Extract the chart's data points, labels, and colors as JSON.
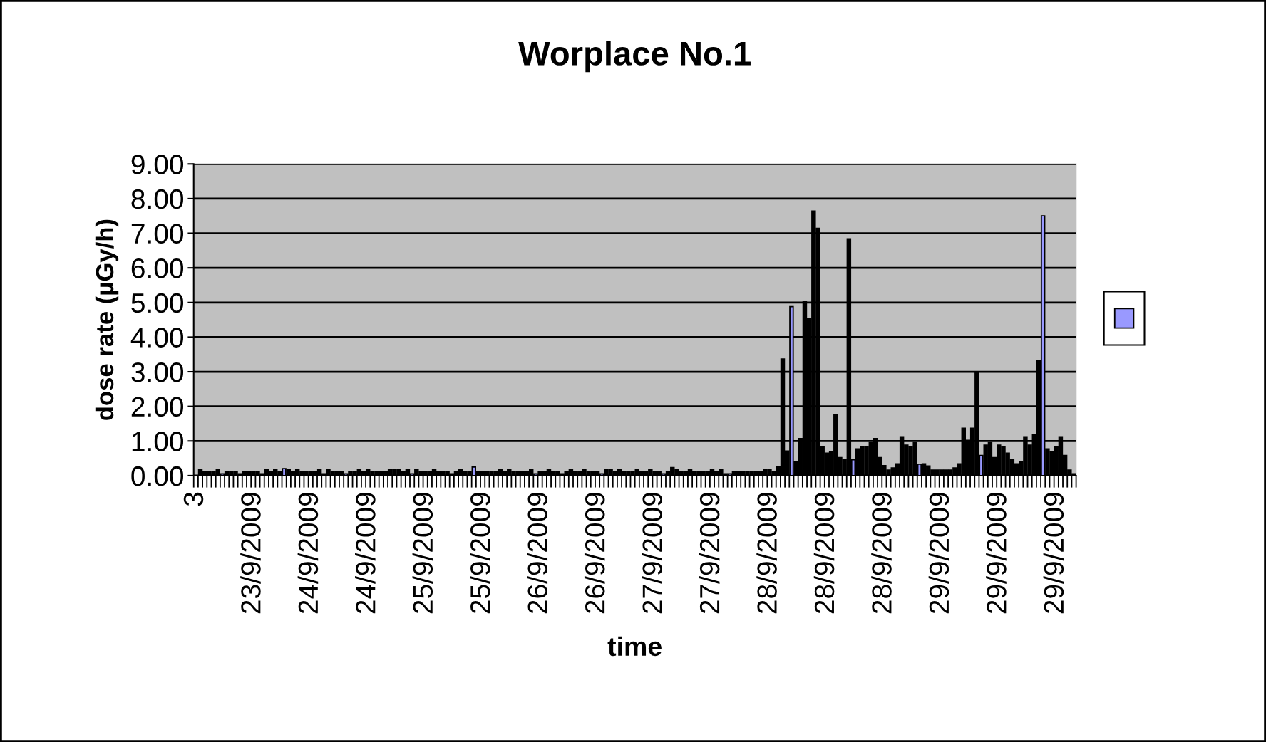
{
  "chart_data": {
    "type": "bar",
    "title": "Worplace No.1",
    "xlabel": "time",
    "ylabel": "dose rate (µGy/h)",
    "categories": [
      "3",
      null,
      null,
      null,
      null,
      null,
      null,
      null,
      null,
      null,
      null,
      null,
      null,
      "23/9/2009",
      null,
      null,
      null,
      null,
      null,
      null,
      null,
      null,
      null,
      null,
      null,
      null,
      "24/9/2009",
      null,
      null,
      null,
      null,
      null,
      null,
      null,
      null,
      null,
      null,
      null,
      null,
      "24/9/2009",
      null,
      null,
      null,
      null,
      null,
      null,
      null,
      null,
      null,
      null,
      null,
      null,
      "25/9/2009",
      null,
      null,
      null,
      null,
      null,
      null,
      null,
      null,
      null,
      null,
      null,
      null,
      "25/9/2009",
      null,
      null,
      null,
      null,
      null,
      null,
      null,
      null,
      null,
      null,
      null,
      null,
      "26/9/2009",
      null,
      null,
      null,
      null,
      null,
      null,
      null,
      null,
      null,
      null,
      null,
      null,
      "26/9/2009",
      null,
      null,
      null,
      null,
      null,
      null,
      null,
      null,
      null,
      null,
      null,
      null,
      "27/9/2009",
      null,
      null,
      null,
      null,
      null,
      null,
      null,
      null,
      null,
      null,
      null,
      null,
      "27/9/2009",
      null,
      null,
      null,
      null,
      null,
      null,
      null,
      null,
      null,
      null,
      null,
      null,
      "28/9/2009",
      null,
      null,
      null,
      null,
      null,
      null,
      null,
      null,
      null,
      null,
      null,
      null,
      "28/9/2009",
      null,
      null,
      null,
      null,
      null,
      null,
      null,
      null,
      null,
      null,
      null,
      null,
      "28/9/2009",
      null,
      null,
      null,
      null,
      null,
      null,
      null,
      null,
      null,
      null,
      null,
      null,
      "29/9/2009",
      null,
      null,
      null,
      null,
      null,
      null,
      null,
      null,
      null,
      null,
      null,
      null,
      "29/9/2009",
      null,
      null,
      null,
      null,
      null,
      null,
      null,
      null,
      null,
      null,
      null,
      null,
      "29/9/2009",
      null,
      null,
      null,
      null
    ],
    "series": [
      {
        "color": "#9999ff",
        "values": [
          0,
          0.18,
          0.12,
          0.12,
          0.12,
          0.18,
          0.05,
          0.12,
          0.12,
          0.12,
          0.05,
          0.12,
          0.12,
          0.12,
          0.12,
          0.05,
          0.18,
          0.12,
          0.18,
          0.12,
          0.2,
          0.18,
          0.12,
          0.18,
          0.12,
          0.12,
          0.12,
          0.12,
          0.18,
          0.05,
          0.18,
          0.12,
          0.12,
          0.12,
          0.05,
          0.12,
          0.12,
          0.18,
          0.12,
          0.18,
          0.12,
          0.12,
          0.12,
          0.12,
          0.18,
          0.18,
          0.18,
          0.12,
          0.18,
          0.05,
          0.18,
          0.12,
          0.12,
          0.12,
          0.18,
          0.12,
          0.12,
          0.12,
          0.05,
          0.12,
          0.18,
          0.12,
          0.12,
          0.25,
          0.12,
          0.12,
          0.12,
          0.12,
          0.12,
          0.18,
          0.12,
          0.18,
          0.12,
          0.12,
          0.12,
          0.12,
          0.18,
          0.05,
          0.12,
          0.12,
          0.18,
          0.12,
          0.12,
          0.05,
          0.12,
          0.18,
          0.12,
          0.12,
          0.18,
          0.12,
          0.12,
          0.12,
          0.05,
          0.18,
          0.18,
          0.12,
          0.18,
          0.12,
          0.12,
          0.12,
          0.18,
          0.12,
          0.12,
          0.18,
          0.12,
          0.12,
          0.05,
          0.12,
          0.23,
          0.18,
          0.12,
          0.12,
          0.18,
          0.12,
          0.12,
          0.12,
          0.12,
          0.18,
          0.12,
          0.18,
          0.05,
          0.05,
          0.12,
          0.12,
          0.12,
          0.12,
          0.12,
          0.12,
          0.12,
          0.18,
          0.18,
          0.12,
          0.25,
          3.37,
          0.71,
          4.88,
          0.41,
          1.07,
          5.02,
          4.54,
          7.64,
          7.14,
          0.83,
          0.65,
          0.7,
          1.75,
          0.52,
          0.46,
          6.84,
          0.46,
          0.77,
          0.83,
          0.83,
          0.95,
          1.07,
          0.52,
          0.29,
          0.16,
          0.22,
          0.34,
          1.12,
          0.88,
          0.83,
          0.95,
          0.33,
          0.34,
          0.28,
          0.16,
          0.16,
          0.16,
          0.16,
          0.16,
          0.22,
          0.34,
          1.37,
          1.02,
          1.37,
          3.0,
          0.58,
          0.88,
          0.95,
          0.52,
          0.88,
          0.83,
          0.65,
          0.46,
          0.34,
          0.41,
          1.12,
          0.88,
          1.19,
          3.31,
          7.5,
          0.77,
          0.7,
          0.83,
          1.12,
          0.58,
          0.16,
          0.05
        ],
        "colors": [
          "#000000",
          "#000000",
          "#000000",
          "#000000",
          "#000000",
          "#000000",
          "#9999ff",
          "#000000",
          "#000000",
          "#000000",
          "#000000",
          "#000000",
          "#000000",
          "#000000",
          "#000000",
          "#000000",
          "#000000",
          "#000000",
          "#000000",
          "#000000",
          "#9999ff",
          "#000000",
          "#000000",
          "#000000",
          "#000000",
          "#000000",
          "#000000",
          "#000000",
          "#000000",
          "#000000",
          "#000000",
          "#000000",
          "#000000",
          "#000000",
          "#9999ff",
          "#000000",
          "#000000",
          "#000000",
          "#000000",
          "#000000",
          "#000000",
          "#000000",
          "#000000",
          "#000000",
          "#000000",
          "#000000",
          "#000000",
          "#000000",
          "#000000",
          "#9999ff",
          "#000000",
          "#000000",
          "#000000",
          "#000000",
          "#000000",
          "#000000",
          "#000000",
          "#000000",
          "#000000",
          "#000000",
          "#000000",
          "#000000",
          "#000000",
          "#9999ff",
          "#000000",
          "#000000",
          "#000000",
          "#000000",
          "#000000",
          "#000000",
          "#000000",
          "#000000",
          "#000000",
          "#000000",
          "#000000",
          "#000000",
          "#000000",
          "#9999ff",
          "#000000",
          "#000000",
          "#000000",
          "#000000",
          "#000000",
          "#000000",
          "#000000",
          "#000000",
          "#000000",
          "#000000",
          "#000000",
          "#000000",
          "#000000",
          "#000000",
          "#9999ff",
          "#000000",
          "#000000",
          "#000000",
          "#000000",
          "#000000",
          "#000000",
          "#000000",
          "#000000",
          "#000000",
          "#000000",
          "#000000",
          "#000000",
          "#000000",
          "#9999ff",
          "#000000",
          "#000000",
          "#000000",
          "#000000",
          "#000000",
          "#000000",
          "#000000",
          "#000000",
          "#000000",
          "#000000",
          "#000000",
          "#000000",
          "#000000",
          "#000000",
          "#9999ff",
          "#000000",
          "#000000",
          "#000000",
          "#000000",
          "#000000",
          "#000000",
          "#000000",
          "#000000",
          "#000000",
          "#000000",
          "#000000",
          "#000000",
          "#000000",
          "#9999ff",
          "#000000",
          "#000000",
          "#000000",
          "#000000",
          "#000000",
          "#000000",
          "#000000",
          "#000000",
          "#000000",
          "#000000",
          "#000000",
          "#000000",
          "#000000",
          "#9999ff",
          "#000000",
          "#000000",
          "#000000",
          "#000000",
          "#000000",
          "#000000",
          "#000000",
          "#000000",
          "#000000",
          "#000000",
          "#000000",
          "#000000",
          "#000000",
          "#000000",
          "#9999ff",
          "#000000",
          "#000000",
          "#000000",
          "#000000",
          "#000000",
          "#000000",
          "#000000",
          "#000000",
          "#000000",
          "#000000",
          "#000000",
          "#000000",
          "#000000",
          "#9999ff",
          "#000000",
          "#000000",
          "#000000",
          "#000000",
          "#000000",
          "#000000",
          "#000000",
          "#000000",
          "#000000",
          "#000000",
          "#000000",
          "#000000",
          "#000000",
          "#9999ff",
          "#000000",
          "#000000",
          "#000000",
          "#000000",
          "#000000",
          "#000000",
          "#000000"
        ]
      }
    ],
    "ylim": [
      0,
      9
    ],
    "yticks": [
      {
        "value": 0,
        "label": "0.00"
      },
      {
        "value": 1,
        "label": "1.00"
      },
      {
        "value": 2,
        "label": "2.00"
      },
      {
        "value": 3,
        "label": "3.00"
      },
      {
        "value": 4,
        "label": "4.00"
      },
      {
        "value": 5,
        "label": "5.00"
      },
      {
        "value": 6,
        "label": "6.00"
      },
      {
        "value": 7,
        "label": "7.00"
      },
      {
        "value": 8,
        "label": "8.00"
      },
      {
        "value": 9,
        "label": "9.00"
      }
    ],
    "grid": "y"
  }
}
